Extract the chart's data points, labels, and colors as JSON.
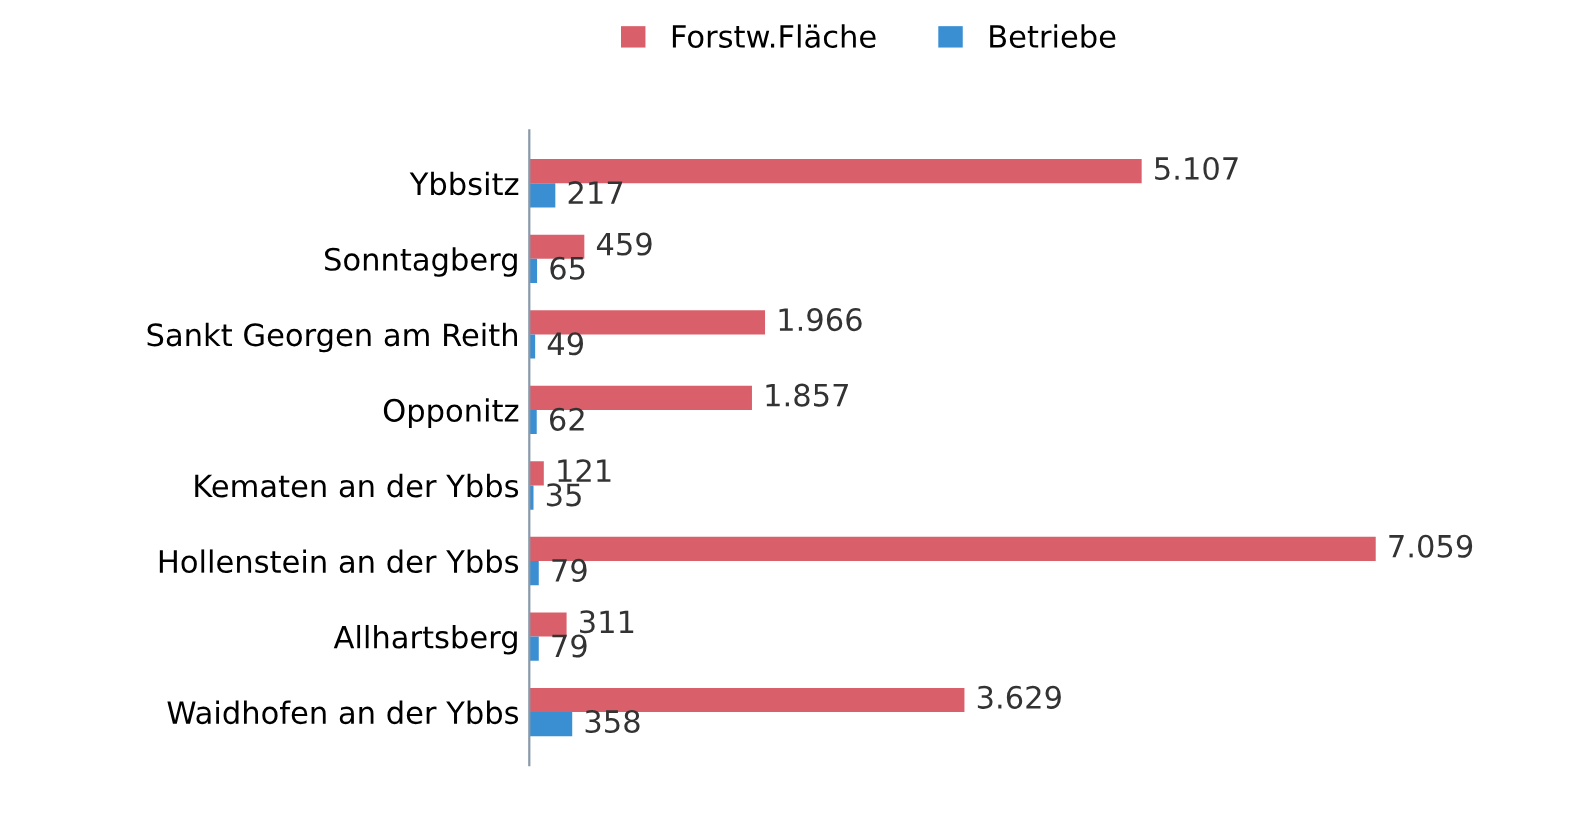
{
  "chart_data": {
    "type": "bar",
    "orientation": "horizontal",
    "legend": "top",
    "grid": false,
    "categories": [
      "Ybbsitz",
      "Sonntagberg",
      "Sankt Georgen am Reith",
      "Opponitz",
      "Kematen an der Ybbs",
      "Hollenstein an der Ybbs",
      "Allhartsberg",
      "Waidhofen an der Ybbs"
    ],
    "series": [
      {
        "name": "Forstw.Fläche",
        "color": "#d9606a",
        "values": [
          5107,
          459,
          1966,
          1857,
          121,
          7059,
          311,
          3629
        ],
        "value_labels": [
          "5.107",
          "459",
          "1.966",
          "1.857",
          "121",
          "7.059",
          "311",
          "3.629"
        ]
      },
      {
        "name": "Betriebe",
        "color": "#3a8fd3",
        "values": [
          217,
          65,
          49,
          62,
          35,
          79,
          79,
          358
        ],
        "value_labels": [
          "217",
          "65",
          "49",
          "62",
          "35",
          "79",
          "79",
          "358"
        ]
      }
    ]
  }
}
